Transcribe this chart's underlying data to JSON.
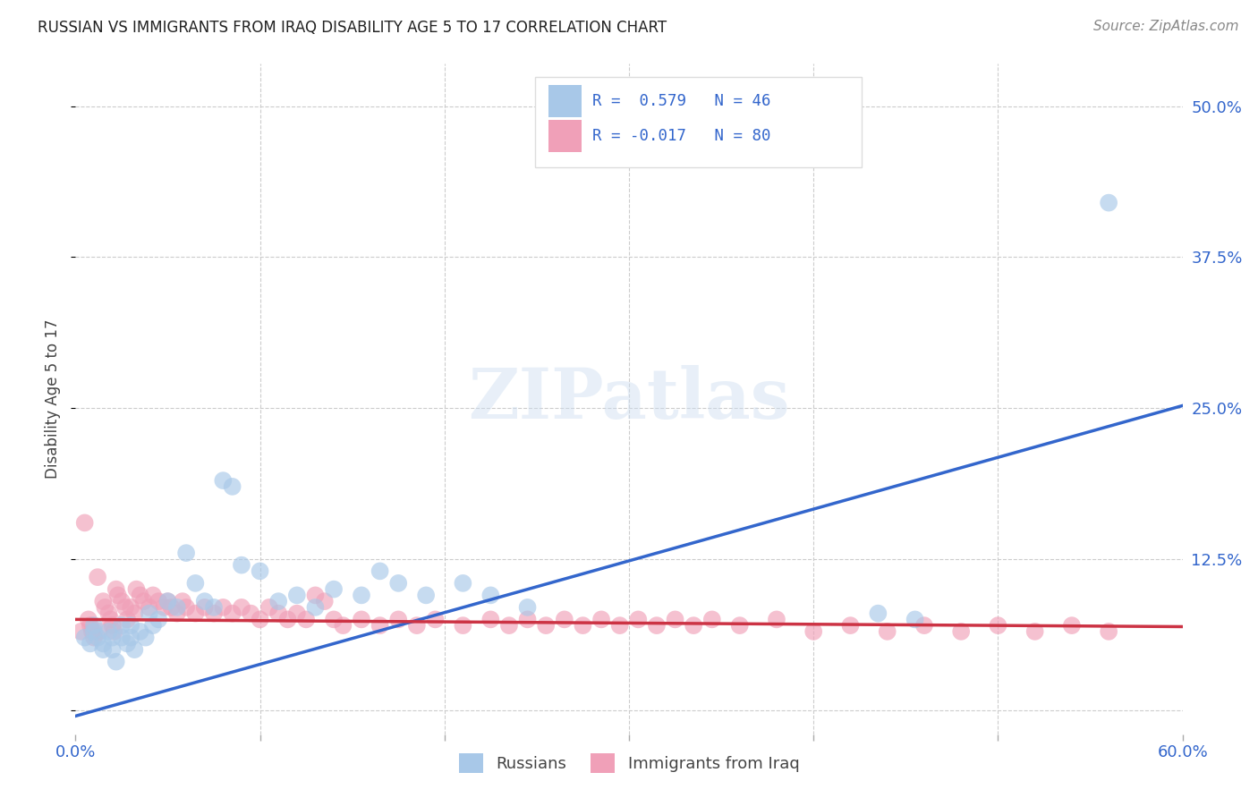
{
  "title": "RUSSIAN VS IMMIGRANTS FROM IRAQ DISABILITY AGE 5 TO 17 CORRELATION CHART",
  "source": "Source: ZipAtlas.com",
  "ylabel": "Disability Age 5 to 17",
  "xlim": [
    0.0,
    0.6
  ],
  "ylim": [
    -0.02,
    0.535
  ],
  "xticks": [
    0.0,
    0.1,
    0.2,
    0.3,
    0.4,
    0.5,
    0.6
  ],
  "xticklabels": [
    "0.0%",
    "",
    "",
    "",
    "",
    "",
    "60.0%"
  ],
  "yticks": [
    0.0,
    0.125,
    0.25,
    0.375,
    0.5
  ],
  "yticklabels": [
    "",
    "12.5%",
    "25.0%",
    "37.5%",
    "50.0%"
  ],
  "grid_color": "#cccccc",
  "background_color": "#ffffff",
  "color_russian": "#a8c8e8",
  "color_iraq": "#f0a0b8",
  "line_color_russian": "#3366cc",
  "line_color_iraq": "#cc3344",
  "ru_line_x0": 0.0,
  "ru_line_y0": -0.005,
  "ru_line_x1": 0.6,
  "ru_line_y1": 0.252,
  "iq_line_x0": 0.0,
  "iq_line_y0": 0.075,
  "iq_line_x1": 0.6,
  "iq_line_y1": 0.069,
  "russians_x": [
    0.005,
    0.008,
    0.01,
    0.01,
    0.012,
    0.015,
    0.015,
    0.018,
    0.02,
    0.02,
    0.022,
    0.025,
    0.025,
    0.028,
    0.03,
    0.03,
    0.032,
    0.035,
    0.038,
    0.04,
    0.042,
    0.045,
    0.05,
    0.055,
    0.06,
    0.065,
    0.07,
    0.075,
    0.08,
    0.085,
    0.09,
    0.1,
    0.11,
    0.12,
    0.13,
    0.14,
    0.155,
    0.165,
    0.175,
    0.19,
    0.21,
    0.225,
    0.245,
    0.435,
    0.455,
    0.56
  ],
  "russians_y": [
    0.06,
    0.055,
    0.065,
    0.07,
    0.06,
    0.055,
    0.05,
    0.065,
    0.06,
    0.05,
    0.04,
    0.07,
    0.06,
    0.055,
    0.07,
    0.06,
    0.05,
    0.065,
    0.06,
    0.08,
    0.07,
    0.075,
    0.09,
    0.085,
    0.13,
    0.105,
    0.09,
    0.085,
    0.19,
    0.185,
    0.12,
    0.115,
    0.09,
    0.095,
    0.085,
    0.1,
    0.095,
    0.115,
    0.105,
    0.095,
    0.105,
    0.095,
    0.085,
    0.08,
    0.075,
    0.42
  ],
  "iraq_x": [
    0.003,
    0.005,
    0.007,
    0.008,
    0.009,
    0.01,
    0.012,
    0.013,
    0.015,
    0.016,
    0.018,
    0.019,
    0.02,
    0.021,
    0.022,
    0.023,
    0.025,
    0.027,
    0.028,
    0.03,
    0.032,
    0.033,
    0.035,
    0.037,
    0.04,
    0.042,
    0.045,
    0.048,
    0.05,
    0.052,
    0.055,
    0.058,
    0.06,
    0.065,
    0.07,
    0.075,
    0.08,
    0.085,
    0.09,
    0.095,
    0.1,
    0.105,
    0.11,
    0.115,
    0.12,
    0.125,
    0.13,
    0.135,
    0.14,
    0.145,
    0.155,
    0.165,
    0.175,
    0.185,
    0.195,
    0.21,
    0.225,
    0.235,
    0.245,
    0.255,
    0.265,
    0.275,
    0.285,
    0.295,
    0.305,
    0.315,
    0.325,
    0.335,
    0.345,
    0.36,
    0.38,
    0.4,
    0.42,
    0.44,
    0.46,
    0.48,
    0.5,
    0.52,
    0.54,
    0.56
  ],
  "iraq_y": [
    0.065,
    0.155,
    0.075,
    0.07,
    0.065,
    0.06,
    0.11,
    0.065,
    0.09,
    0.085,
    0.08,
    0.075,
    0.07,
    0.065,
    0.1,
    0.095,
    0.09,
    0.085,
    0.075,
    0.085,
    0.08,
    0.1,
    0.095,
    0.09,
    0.085,
    0.095,
    0.09,
    0.085,
    0.09,
    0.085,
    0.08,
    0.09,
    0.085,
    0.08,
    0.085,
    0.08,
    0.085,
    0.08,
    0.085,
    0.08,
    0.075,
    0.085,
    0.08,
    0.075,
    0.08,
    0.075,
    0.095,
    0.09,
    0.075,
    0.07,
    0.075,
    0.07,
    0.075,
    0.07,
    0.075,
    0.07,
    0.075,
    0.07,
    0.075,
    0.07,
    0.075,
    0.07,
    0.075,
    0.07,
    0.075,
    0.07,
    0.075,
    0.07,
    0.075,
    0.07,
    0.075,
    0.065,
    0.07,
    0.065,
    0.07,
    0.065,
    0.07,
    0.065,
    0.07,
    0.065
  ]
}
